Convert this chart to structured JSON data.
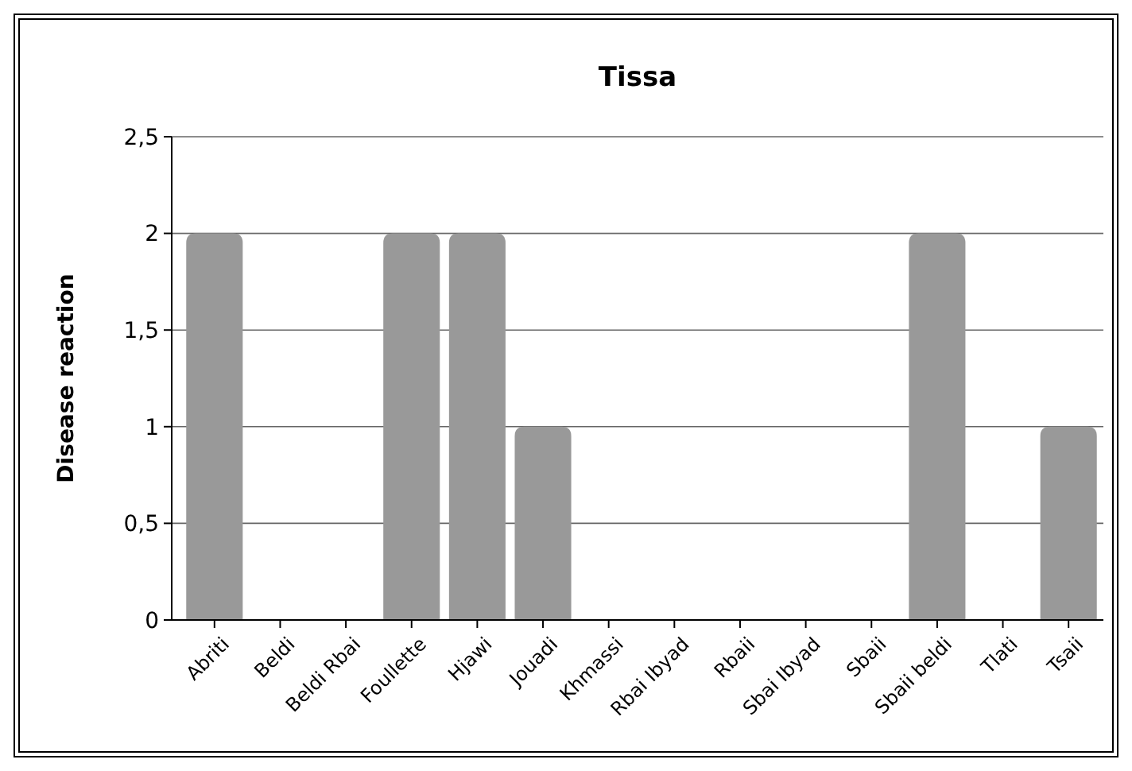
{
  "chart_data": {
    "type": "bar",
    "title": "Tissa",
    "ylabel": "Disease reaction",
    "categories": [
      "Abriti",
      "Beldi",
      "Beldi Rbai",
      "Foullette",
      "Hjawi",
      "Jouadi",
      "Khmassi",
      "Rbai Ibyad",
      "Rbaii",
      "Sbai Ibyad",
      "Sbaii",
      "Sbaii beldi",
      "Tlati",
      "Tsaii"
    ],
    "values": [
      2,
      0,
      0,
      2,
      2,
      1,
      0,
      0,
      0,
      0,
      0,
      2,
      0,
      1
    ],
    "color": "#999999",
    "ylim": [
      0,
      2.5
    ],
    "yticks": [
      0,
      {
        "value": 0.5,
        "label": "0,5"
      },
      1,
      {
        "value": 1.5,
        "label": "1,5"
      },
      2,
      {
        "value": 2.5,
        "label": "2,5"
      }
    ],
    "grid": "y"
  }
}
